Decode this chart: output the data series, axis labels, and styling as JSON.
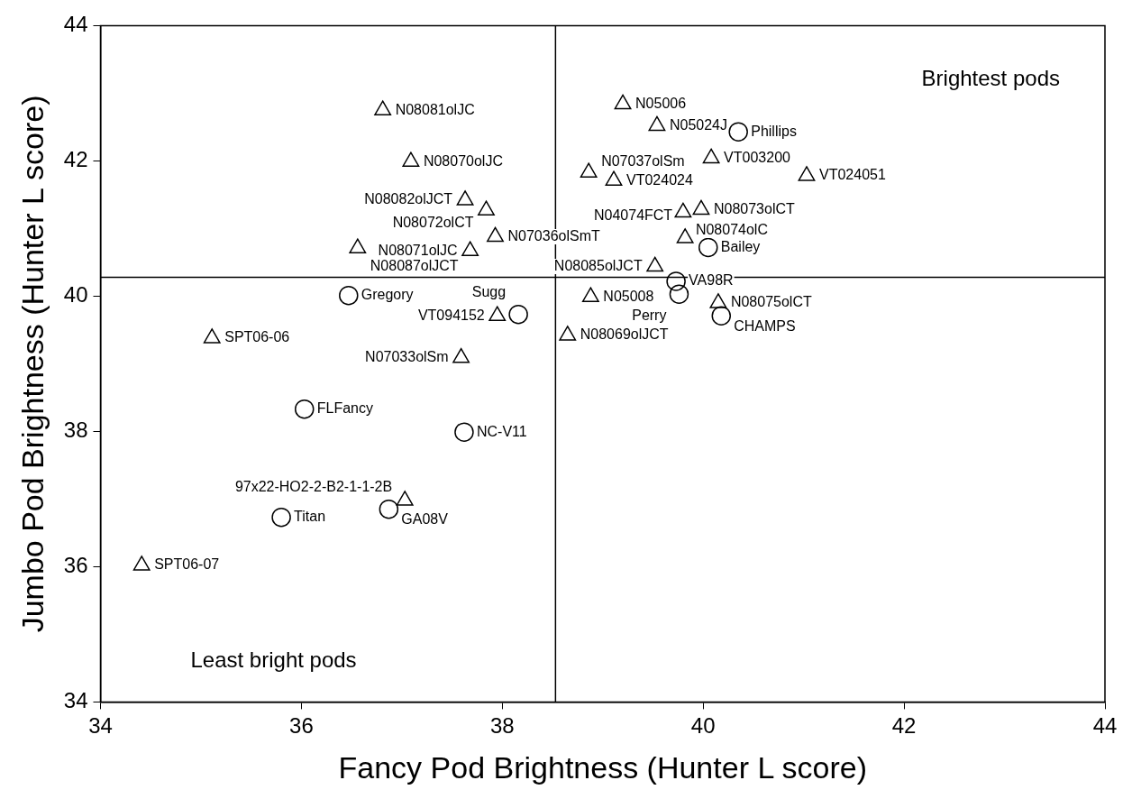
{
  "chart_data": {
    "type": "scatter",
    "xlabel": "Fancy Pod Brightness (Hunter L score)",
    "ylabel": "Jumbo Pod Brightness (Hunter L score)",
    "xlim": [
      34,
      44
    ],
    "xticks": [
      34,
      36,
      38,
      40,
      42,
      44
    ],
    "ylim": [
      34,
      44
    ],
    "yticks": [
      34,
      36,
      38,
      40,
      42,
      44
    ],
    "grid": false,
    "legend": false,
    "series": [
      {
        "color": "#000000",
        "marker": "triangle",
        "x": [
          36.81,
          37.09,
          37.63,
          37.84,
          37.93,
          37.68,
          36.56,
          39.2,
          39.54,
          40.08,
          38.86,
          39.11,
          41.03,
          39.8,
          39.98,
          39.82,
          39.52,
          38.88,
          40.15,
          37.95,
          38.65,
          37.59,
          35.11,
          37.03,
          34.41
        ],
        "values": [
          42.75,
          41.99,
          41.42,
          41.27,
          40.88,
          40.67,
          40.71,
          42.84,
          42.52,
          42.04,
          41.83,
          41.71,
          41.78,
          41.24,
          41.28,
          40.86,
          40.44,
          39.99,
          39.9,
          39.71,
          39.42,
          39.09,
          39.38,
          36.98,
          36.02
        ],
        "value_labels": [
          "N08081olJC",
          "N08070olJC",
          "N08082olJCT",
          "N08072olCT",
          "N07036olSmT",
          "N08071olJC",
          "N08087olJCT",
          "N05006",
          "N05024J",
          "VT003200",
          "N07037olSm",
          "VT024024",
          "VT024051",
          "N08074olC",
          "N08073olCT",
          "N04074FCT",
          "N08085olJCT",
          "N05008",
          "N08075olCT",
          "VT094152",
          "N08069olJCT",
          "N07033olSm",
          "SPT06-06",
          "97x22-HO2-2-B2-1-1-2B",
          "SPT06-07"
        ]
      },
      {
        "color": "#000000",
        "marker": "circle",
        "x": [
          40.35,
          40.05,
          39.73,
          39.76,
          40.18,
          38.16,
          36.47,
          36.03,
          37.62,
          35.8,
          36.87
        ],
        "values": [
          42.43,
          40.72,
          40.22,
          40.03,
          39.71,
          39.73,
          40.01,
          38.33,
          37.99,
          36.73,
          36.85
        ],
        "value_labels": [
          "Phillips",
          "Bailey",
          "VA98R",
          "Perry",
          "CHAMPS",
          "Sugg",
          "Gregory",
          "FLFancy",
          "NC-V11",
          "Titan",
          "GA08V"
        ]
      }
    ],
    "ref_lines": [
      {
        "axis": "x",
        "value": 38.53,
        "color": "#000000"
      },
      {
        "axis": "y",
        "value": 40.28,
        "color": "#000000"
      }
    ],
    "annotations": [
      "Brightest pods",
      "Least bright pods"
    ]
  }
}
